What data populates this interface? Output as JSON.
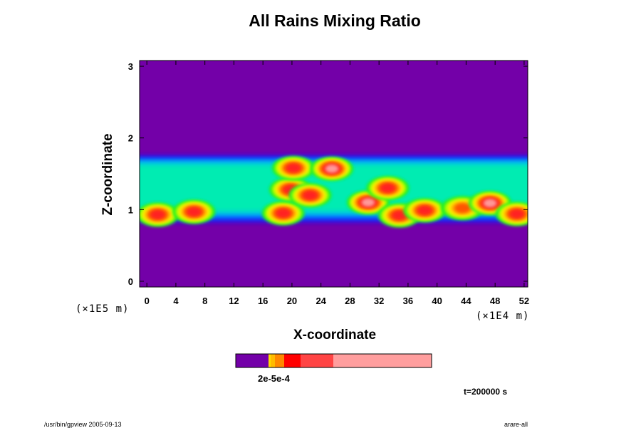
{
  "colors": {
    "background": "#7300a8",
    "scale": [
      "#7300a8",
      "#1a00ff",
      "#0066ff",
      "#00ccff",
      "#00ff99",
      "#22ee22",
      "#aaff00",
      "#ffee00",
      "#ffaa00",
      "#ff5500",
      "#ff2222",
      "#ff9999"
    ],
    "colorbar": [
      "#7300a8",
      "#ffbb00",
      "#ff8800",
      "#ff0000",
      "#ff4444",
      "#ff9e9e"
    ]
  },
  "chart_data": {
    "type": "heatmap",
    "title": "All Rains Mixing Ratio",
    "xlabel": "X-coordinate",
    "ylabel": "Z-coordinate",
    "x_unit": "(×1E4 m)",
    "y_unit": "(×1E5 m)",
    "xlim": [
      -1,
      52.5
    ],
    "ylim": [
      -0.08,
      3.08
    ],
    "x_ticks": [
      0,
      4,
      8,
      12,
      16,
      20,
      24,
      28,
      32,
      36,
      40,
      44,
      48,
      52
    ],
    "y_ticks": [
      0,
      1,
      2,
      3
    ],
    "grid": false,
    "rain_layer": {
      "z_bottom": 0.83,
      "z_top": 1.75
    },
    "cells": [
      {
        "x": 1.5,
        "z": 0.93,
        "intensity": 0.85
      },
      {
        "x": 6.5,
        "z": 0.97,
        "intensity": 0.9
      },
      {
        "x": 18.8,
        "z": 0.95,
        "intensity": 0.8
      },
      {
        "x": 19.8,
        "z": 1.28,
        "intensity": 0.9
      },
      {
        "x": 22.5,
        "z": 1.2,
        "intensity": 0.85
      },
      {
        "x": 20.2,
        "z": 1.58,
        "intensity": 0.9
      },
      {
        "x": 25.5,
        "z": 1.57,
        "intensity": 0.95
      },
      {
        "x": 30.5,
        "z": 1.1,
        "intensity": 1.0
      },
      {
        "x": 33.2,
        "z": 1.3,
        "intensity": 0.8
      },
      {
        "x": 34.8,
        "z": 0.92,
        "intensity": 0.85
      },
      {
        "x": 38.3,
        "z": 0.99,
        "intensity": 0.8
      },
      {
        "x": 43.5,
        "z": 1.02,
        "intensity": 0.75
      },
      {
        "x": 47.3,
        "z": 1.09,
        "intensity": 0.95
      },
      {
        "x": 51,
        "z": 0.94,
        "intensity": 0.8
      }
    ],
    "colorbar_label": "2e-5e-4"
  },
  "time_label": "t=200000 s",
  "footer_left": "/usr/bin/gpview 2005-09-13",
  "footer_right": "arare-all"
}
